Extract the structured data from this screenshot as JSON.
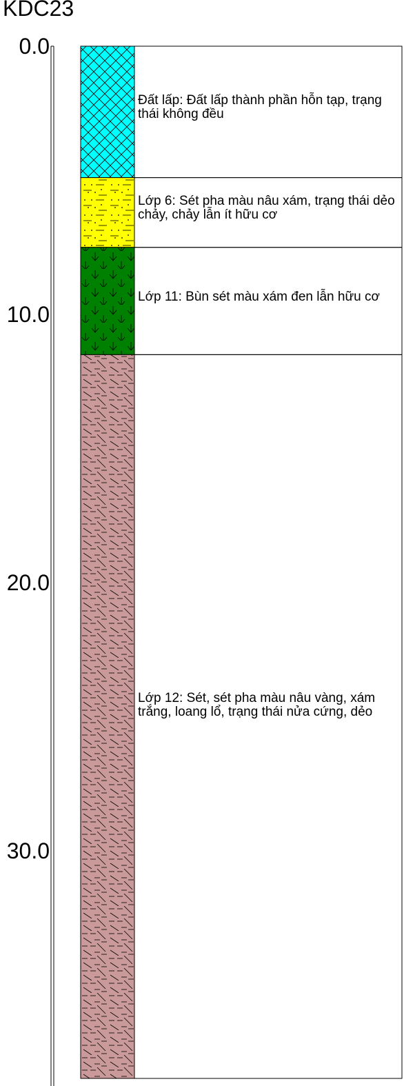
{
  "borehole": {
    "name": "KDC23",
    "depth_unit": "m",
    "total_depth": 38.5,
    "axis_ticks": [
      "0.0",
      "10.0",
      "20.0",
      "30.0"
    ],
    "axis_tick_values": [
      0,
      10,
      20,
      30
    ]
  },
  "layers": [
    {
      "id": "fill",
      "top": 0.0,
      "bottom": 4.9,
      "color": "#00FFFF",
      "pattern": "cross-hatch",
      "description": "Đất lấp: Đất lấp thành phần hỗn tạp, trạng thái không đều"
    },
    {
      "id": "layer-6",
      "top": 4.9,
      "bottom": 7.5,
      "color": "#FFFF00",
      "pattern": "dots-dashes",
      "description": "Lớp 6: Sét pha màu nâu xám, trạng thái dẻo chảy, chảy lẫn ít hữu cơ"
    },
    {
      "id": "layer-11",
      "top": 7.5,
      "bottom": 11.5,
      "color": "#008000",
      "pattern": "v-marks",
      "description": "Lớp 11: Bùn sét màu xám đen lẫn hữu cơ"
    },
    {
      "id": "layer-12",
      "top": 11.5,
      "bottom": 38.5,
      "color": "#C99A99",
      "pattern": "dashes-diagonals",
      "description": "Lớp 12: Sét, sét pha màu nâu vàng, xám trắng, loang lổ, trạng thái nửa cứng, dẻo"
    }
  ]
}
